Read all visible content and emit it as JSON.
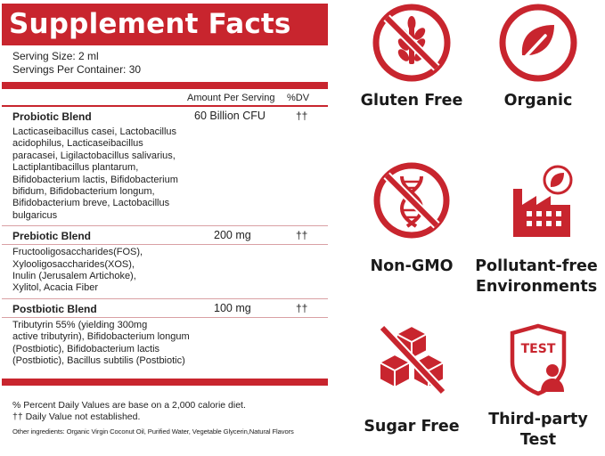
{
  "facts": {
    "title": "Supplement Facts",
    "serving_size": "Serving Size: 2 ml",
    "servings_per_container": "Servings Per Container: 30",
    "col_amount": "Amount Per Serving",
    "col_dv": "%DV",
    "blends": [
      {
        "name": "Probiotic Blend",
        "amount": "60 Billion CFU",
        "dv": "††",
        "lines": [
          "Lacticaseibacillus casei, Lactobacillus",
          "acidophilus, Lacticaseibacillus",
          "paracasei, Ligilactobacillus salivarius,",
          "Lactiplantibacillus plantarum,",
          "Bifidobacterium lactis, Bifidobacterium",
          "bifidum, Bifidobacterium longum,",
          "Bifidobacterium breve, Lactobacillus",
          "bulgaricus"
        ]
      },
      {
        "name": "Prebiotic Blend",
        "amount": "200 mg",
        "dv": "††",
        "lines": [
          "Fructooligosaccharides(FOS),",
          "Xylooligosaccharides(XOS),",
          "Inulin (Jerusalem Artichoke),",
          "Xylitol, Acacia Fiber"
        ]
      },
      {
        "name": "Postbiotic Blend",
        "amount": "100 mg",
        "dv": "††",
        "lines": [
          "Tributyrin 55% (yielding 300mg",
          "active tributyrin), Bifidobacterium longum",
          "(Postbiotic), Bifidobacterium lactis",
          "(Postbiotic), Bacillus subtilis (Postbiotic)"
        ]
      }
    ],
    "footnote_1": "% Percent Daily Values are base on a 2,000 calorie diet.",
    "footnote_2": "†† Daily Value not established.",
    "other_ingredients": "Other ingredients: Organic Virgin Coconut Oil, Purified Water, Vegetable Glycerin,Natural Flavors"
  },
  "badges": {
    "gluten_free": {
      "label": "Gluten Free",
      "icon": "wheat-crossed-icon"
    },
    "organic": {
      "label": "Organic",
      "icon": "leaf-icon"
    },
    "non_gmo": {
      "label": "Non-GMO",
      "icon": "dna-crossed-icon"
    },
    "pollutant_free": {
      "label_1": "Pollutant-free",
      "label_2": "Environments",
      "icon": "factory-leaf-icon"
    },
    "sugar_free": {
      "label": "Sugar Free",
      "icon": "sugar-cubes-crossed-icon"
    },
    "third_party": {
      "label_1": "Third-party",
      "label_2": "Test",
      "badge_text": "TEST",
      "icon": "shield-test-icon"
    }
  },
  "colors": {
    "accent": "#c8252e",
    "text": "#1a1a1a"
  }
}
